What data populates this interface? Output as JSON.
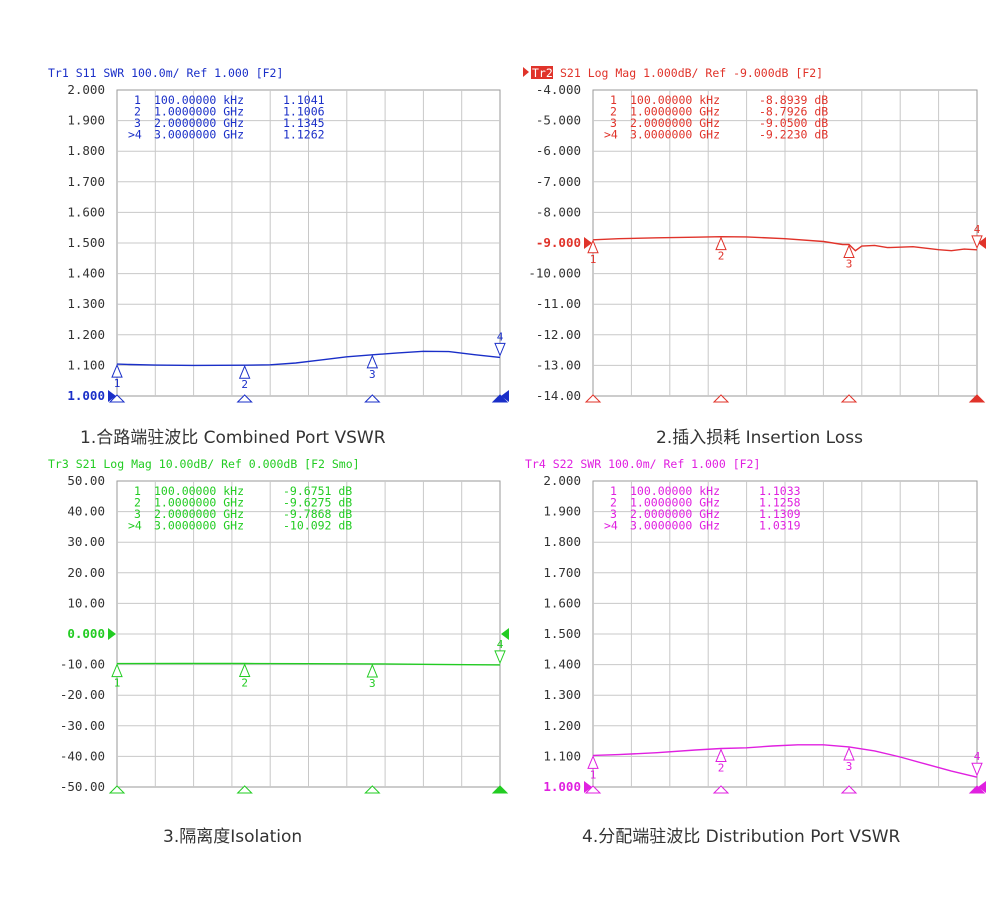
{
  "chart_data": [
    {
      "type": "line",
      "header": "Tr1 S11 SWR 100.0m/ Ref 1.000 [F2]",
      "header_color": "#1a2fc8",
      "caption": "1.合路端驻波比 Combined Port VSWR",
      "ylim": [
        1.0,
        2.0
      ],
      "y_ticks": [
        "2.000",
        "1.900",
        "1.800",
        "1.700",
        "1.600",
        "1.500",
        "1.400",
        "1.300",
        "1.200",
        "1.100",
        "1.000"
      ],
      "ref_tick_index": 10,
      "xlim": [
        0.0001,
        3.0
      ],
      "marker_table": [
        [
          "1",
          "100.00000 kHz",
          "1.1041"
        ],
        [
          "2",
          "1.0000000 GHz",
          "1.1006"
        ],
        [
          "3",
          "2.0000000 GHz",
          "1.1345"
        ],
        [
          ">4",
          "3.0000000 GHz",
          "1.1262"
        ]
      ],
      "markers": [
        {
          "id": "1",
          "x": 0.0001,
          "y": 1.1041
        },
        {
          "id": "2",
          "x": 1.0,
          "y": 1.1006
        },
        {
          "id": "3",
          "x": 2.0,
          "y": 1.1345
        },
        {
          "id": "4",
          "x": 3.0,
          "y": 1.1262
        }
      ],
      "series": [
        {
          "x": [
            0,
            0.1,
            0.3,
            0.6,
            1.0,
            1.2,
            1.4,
            1.6,
            1.8,
            2.0,
            2.2,
            2.4,
            2.6,
            2.8,
            3.0
          ],
          "y": [
            1.1041,
            1.103,
            1.101,
            1.1,
            1.1006,
            1.102,
            1.108,
            1.118,
            1.128,
            1.1345,
            1.141,
            1.146,
            1.145,
            1.135,
            1.1262
          ]
        }
      ]
    },
    {
      "type": "line",
      "header": "Tr2 S21 Log Mag 1.000dB/ Ref -9.000dB [F2]",
      "header_color": "#e0332a",
      "caption": "2.插入损耗 Insertion Loss",
      "ylim": [
        -14.0,
        -4.0
      ],
      "y_ticks": [
        "-4.000",
        "-5.000",
        "-6.000",
        "-7.000",
        "-8.000",
        "-9.000",
        "-10.000",
        "-11.00",
        "-12.00",
        "-13.00",
        "-14.00"
      ],
      "ref_tick_index": 5,
      "xlim": [
        0.0001,
        3.0
      ],
      "marker_table": [
        [
          "1",
          "100.00000 kHz",
          "-8.8939 dB"
        ],
        [
          "2",
          "1.0000000 GHz",
          "-8.7926 dB"
        ],
        [
          "3",
          "2.0000000 GHz",
          "-9.0500 dB"
        ],
        [
          ">4",
          "3.0000000 GHz",
          "-9.2230 dB"
        ]
      ],
      "markers": [
        {
          "id": "1",
          "x": 0.0001,
          "y": -8.8939
        },
        {
          "id": "2",
          "x": 1.0,
          "y": -8.7926
        },
        {
          "id": "3",
          "x": 2.0,
          "y": -9.05
        },
        {
          "id": "4",
          "x": 3.0,
          "y": -9.223
        }
      ],
      "series": [
        {
          "x": [
            0,
            0.2,
            0.5,
            0.8,
            1.0,
            1.2,
            1.5,
            1.8,
            1.95,
            2.0,
            2.05,
            2.1,
            2.2,
            2.3,
            2.5,
            2.7,
            2.8,
            2.9,
            3.0
          ],
          "y": [
            -8.8939,
            -8.86,
            -8.83,
            -8.81,
            -8.7926,
            -8.8,
            -8.86,
            -8.95,
            -9.05,
            -9.05,
            -9.25,
            -9.1,
            -9.08,
            -9.15,
            -9.12,
            -9.22,
            -9.25,
            -9.2,
            -9.223
          ]
        }
      ]
    },
    {
      "type": "line",
      "header": "Tr3 S21 Log Mag 10.00dB/ Ref 0.000dB [F2 Smo]",
      "header_color": "#22cc22",
      "caption": "3.隔离度Isolation",
      "ylim": [
        -50.0,
        50.0
      ],
      "y_ticks": [
        "50.00",
        "40.00",
        "30.00",
        "20.00",
        "10.00",
        "0.000",
        "-10.00",
        "-20.00",
        "-30.00",
        "-40.00",
        "-50.00"
      ],
      "ref_tick_index": 5,
      "xlim": [
        0.0001,
        3.0
      ],
      "marker_table": [
        [
          "1",
          "100.00000 kHz",
          "-9.6751 dB"
        ],
        [
          "2",
          "1.0000000 GHz",
          "-9.6275 dB"
        ],
        [
          "3",
          "2.0000000 GHz",
          "-9.7868 dB"
        ],
        [
          ">4",
          "3.0000000 GHz",
          "-10.092 dB"
        ]
      ],
      "markers": [
        {
          "id": "1",
          "x": 0.0001,
          "y": -9.6751
        },
        {
          "id": "2",
          "x": 1.0,
          "y": -9.6275
        },
        {
          "id": "3",
          "x": 2.0,
          "y": -9.7868
        },
        {
          "id": "4",
          "x": 3.0,
          "y": -10.092
        }
      ],
      "series": [
        {
          "x": [
            0,
            0.5,
            1.0,
            1.5,
            2.0,
            2.5,
            3.0
          ],
          "y": [
            -9.6751,
            -9.65,
            -9.6275,
            -9.7,
            -9.7868,
            -9.95,
            -10.092
          ]
        }
      ]
    },
    {
      "type": "line",
      "header": "Tr4 S22 SWR 100.0m/ Ref 1.000 [F2]",
      "header_color": "#e020e0",
      "caption": "4.分配端驻波比 Distribution  Port VSWR",
      "ylim": [
        1.0,
        2.0
      ],
      "y_ticks": [
        "2.000",
        "1.900",
        "1.800",
        "1.700",
        "1.600",
        "1.500",
        "1.400",
        "1.300",
        "1.200",
        "1.100",
        "1.000"
      ],
      "ref_tick_index": 10,
      "xlim": [
        0.0001,
        3.0
      ],
      "marker_table": [
        [
          "1",
          "100.00000 kHz",
          "1.1033"
        ],
        [
          "2",
          "1.0000000 GHz",
          "1.1258"
        ],
        [
          "3",
          "2.0000000 GHz",
          "1.1309"
        ],
        [
          ">4",
          "3.0000000 GHz",
          "1.0319"
        ]
      ],
      "markers": [
        {
          "id": "1",
          "x": 0.0001,
          "y": 1.1033
        },
        {
          "id": "2",
          "x": 1.0,
          "y": 1.1258
        },
        {
          "id": "3",
          "x": 2.0,
          "y": 1.1309
        },
        {
          "id": "4",
          "x": 3.0,
          "y": 1.0319
        }
      ],
      "series": [
        {
          "x": [
            0,
            0.2,
            0.5,
            0.8,
            1.0,
            1.2,
            1.4,
            1.6,
            1.8,
            2.0,
            2.2,
            2.4,
            2.6,
            2.8,
            3.0
          ],
          "y": [
            1.1033,
            1.106,
            1.112,
            1.121,
            1.1258,
            1.128,
            1.134,
            1.138,
            1.138,
            1.1309,
            1.118,
            1.098,
            1.075,
            1.052,
            1.0319
          ]
        }
      ]
    }
  ]
}
